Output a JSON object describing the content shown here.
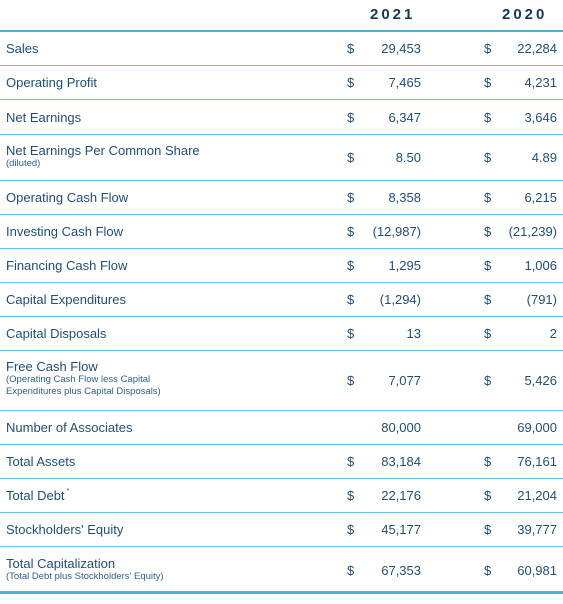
{
  "header": {
    "year1": "2021",
    "year2": "2020"
  },
  "rows": [
    {
      "label": "Sales",
      "sub": "",
      "d1": "$",
      "v1": "29,453",
      "d2": "$",
      "v2": "22,284"
    },
    {
      "label": "Operating Profit",
      "sub": "",
      "d1": "$",
      "v1": "7,465",
      "d2": "$",
      "v2": "4,231"
    },
    {
      "label": "Net Earnings",
      "sub": "",
      "d1": "$",
      "v1": "6,347",
      "d2": "$",
      "v2": "3,646"
    },
    {
      "label": "Net Earnings Per Common Share",
      "sub": "(diluted)",
      "d1": "$",
      "v1": "8.50",
      "d2": "$",
      "v2": "4.89"
    },
    {
      "label": "Operating Cash Flow",
      "sub": "",
      "d1": "$",
      "v1": "8,358",
      "d2": "$",
      "v2": "6,215"
    },
    {
      "label": "Investing Cash Flow",
      "sub": "",
      "d1": "$",
      "v1": "(12,987)",
      "d2": "$",
      "v2": "(21,239)"
    },
    {
      "label": "Financing Cash Flow",
      "sub": "",
      "d1": "$",
      "v1": "1,295",
      "d2": "$",
      "v2": "1,006"
    },
    {
      "label": "Capital Expenditures",
      "sub": "",
      "d1": "$",
      "v1": "(1,294)",
      "d2": "$",
      "v2": "(791)"
    },
    {
      "label": "Capital Disposals",
      "sub": "",
      "d1": "$",
      "v1": "13",
      "d2": "$",
      "v2": "2"
    },
    {
      "label": "Free Cash Flow",
      "sub": "(Operating Cash Flow less Capital Expenditures plus Capital Disposals)",
      "d1": "$",
      "v1": "7,077",
      "d2": "$",
      "v2": "5,426"
    },
    {
      "label": "Number of Associates",
      "sub": "",
      "d1": "",
      "v1": "80,000",
      "d2": "",
      "v2": "69,000"
    },
    {
      "label": "Total Assets",
      "sub": "",
      "d1": "$",
      "v1": "83,184",
      "d2": "$",
      "v2": "76,161"
    },
    {
      "label": "Total Debt",
      "sup": "*",
      "sub": "",
      "d1": "$",
      "v1": "22,176",
      "d2": "$",
      "v2": "21,204"
    },
    {
      "label": "Stockholders' Equity",
      "sub": "",
      "d1": "$",
      "v1": "45,177",
      "d2": "$",
      "v2": "39,777"
    },
    {
      "label": "Total Capitalization",
      "sub": "(Total Debt plus Stockholders' Equity)",
      "d1": "$",
      "v1": "67,353",
      "d2": "$",
      "v2": "60,981"
    }
  ]
}
